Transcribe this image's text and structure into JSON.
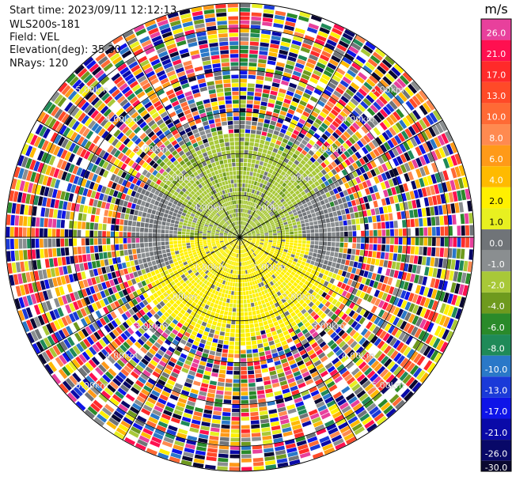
{
  "header": {
    "start_time": "Start time: 2023/09/11 12:12:13",
    "instrument": "WLS200s-181",
    "field": "Field: VEL",
    "elevation": "Elevation(deg): 35.30",
    "nrays": "NRays: 120"
  },
  "colorbar": {
    "unit": "m/s",
    "ticks": [
      "26.0",
      "21.0",
      "17.0",
      "13.0",
      "10.0",
      "8.0",
      "6.0",
      "4.0",
      "2.0",
      "1.0",
      "0.0",
      "-1.0",
      "-2.0",
      "-4.0",
      "-6.0",
      "-8.0",
      "-10.0",
      "-13.0",
      "-17.0",
      "-21.0",
      "-26.0",
      "-30.0"
    ],
    "colors": [
      "#e8409c",
      "#ff1050",
      "#ff2a2a",
      "#ff4a28",
      "#ff6a35",
      "#ff8a50",
      "#ff9a18",
      "#ffba00",
      "#fff000",
      "#e8f020",
      "#707478",
      "#8a8e90",
      "#a8c838",
      "#6e9a1e",
      "#2a8a2a",
      "#1f8a58",
      "#2a78c8",
      "#1a3ad8",
      "#0e14e8",
      "#0a0aa8",
      "#080868",
      "#0a0830"
    ]
  },
  "chart_data": {
    "type": "ppi",
    "field": "VEL",
    "units": "m/s",
    "nrays": 120,
    "range_ring_labels": [
      "1.00km",
      "2.00km",
      "3.00km",
      "4.00km",
      "5.00km"
    ],
    "range_rings_km": [
      1,
      2,
      3,
      4,
      5
    ],
    "max_range_km": 5.6,
    "regions": [
      {
        "range_km": [
          0.0,
          1.5
        ],
        "azimuth_deg": [
          270,
          90
        ],
        "value": -2.0,
        "note": "near-field towards radar (green)"
      },
      {
        "range_km": [
          0.0,
          1.7
        ],
        "azimuth_deg": [
          90,
          270
        ],
        "value": 2.0,
        "note": "near-field away from radar (yellow)"
      },
      {
        "range_km": [
          1.5,
          2.6
        ],
        "azimuth_deg": [
          300,
          60
        ],
        "value": -2.0
      },
      {
        "range_km": [
          1.7,
          2.8
        ],
        "azimuth_deg": [
          110,
          250
        ],
        "value": 2.0
      },
      {
        "range_km": [
          2.6,
          5.6
        ],
        "azimuth_deg": [
          0,
          360
        ],
        "value": null,
        "note": "noise beyond valid range"
      }
    ]
  }
}
